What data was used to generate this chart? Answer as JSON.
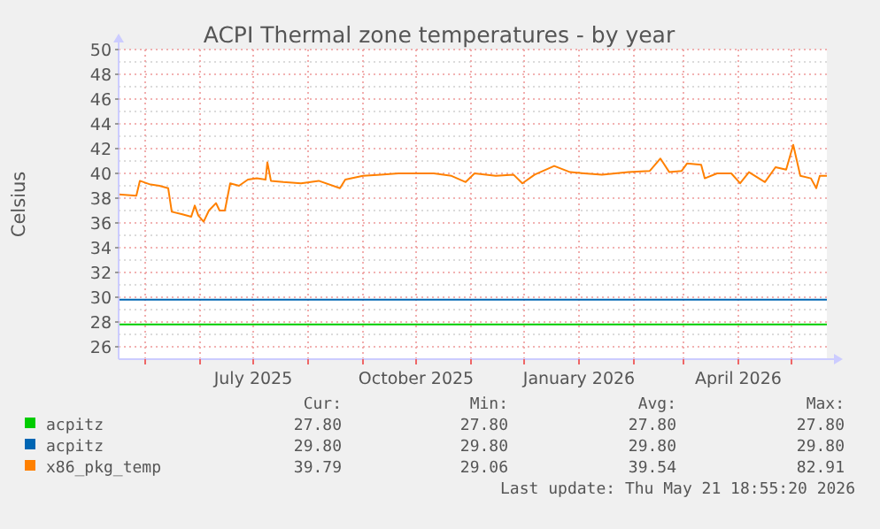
{
  "chart_data": {
    "type": "line",
    "title": "ACPI Thermal zone temperatures - by year",
    "ylabel": "Celsius",
    "xlim": [
      "2025-04-16",
      "2026-05-21"
    ],
    "xticks": [
      {
        "value": "2025-05-01",
        "label": null
      },
      {
        "value": "2025-06-01",
        "label": null
      },
      {
        "value": "2025-07-01",
        "label": "July 2025"
      },
      {
        "value": "2025-08-01",
        "label": null
      },
      {
        "value": "2025-09-01",
        "label": null
      },
      {
        "value": "2025-10-01",
        "label": "October 2025"
      },
      {
        "value": "2025-11-01",
        "label": null
      },
      {
        "value": "2025-12-01",
        "label": null
      },
      {
        "value": "2026-01-01",
        "label": "January 2026"
      },
      {
        "value": "2026-02-01",
        "label": null
      },
      {
        "value": "2026-03-01",
        "label": null
      },
      {
        "value": "2026-04-01",
        "label": "April 2026"
      },
      {
        "value": "2026-05-01",
        "label": null
      }
    ],
    "ylim": [
      25,
      50
    ],
    "yticks": [
      26,
      28,
      30,
      32,
      34,
      36,
      38,
      40,
      42,
      44,
      46,
      48,
      50
    ],
    "grid": true,
    "legend": "bottom",
    "series": [
      {
        "name": "acpitz",
        "color": "#00cc00",
        "x": [
          "2025-04-16",
          "2026-05-21"
        ],
        "values": [
          27.8,
          27.8
        ]
      },
      {
        "name": "acpitz",
        "color": "#0066b3",
        "x": [
          "2025-04-16",
          "2026-05-21"
        ],
        "values": [
          29.8,
          29.8
        ]
      },
      {
        "name": "x86_pkg_temp",
        "color": "#ff8000",
        "x": [
          "2025-04-16",
          "2025-04-26",
          "2025-04-28",
          "2025-05-04",
          "2025-05-09",
          "2025-05-14",
          "2025-05-16",
          "2025-05-22",
          "2025-05-27",
          "2025-05-29",
          "2025-05-31",
          "2025-06-03",
          "2025-06-06",
          "2025-06-10",
          "2025-06-12",
          "2025-06-15",
          "2025-06-18",
          "2025-06-23",
          "2025-06-28",
          "2025-07-03",
          "2025-07-08",
          "2025-07-09",
          "2025-07-11",
          "2025-07-18",
          "2025-07-28",
          "2025-08-07",
          "2025-08-19",
          "2025-08-22",
          "2025-09-01",
          "2025-09-11",
          "2025-09-21",
          "2025-10-01",
          "2025-10-11",
          "2025-10-21",
          "2025-10-29",
          "2025-11-03",
          "2025-11-15",
          "2025-11-25",
          "2025-11-30",
          "2025-12-07",
          "2025-12-18",
          "2025-12-27",
          "2026-01-04",
          "2026-01-14",
          "2026-01-29",
          "2026-02-10",
          "2026-02-16",
          "2026-02-21",
          "2026-02-28",
          "2026-03-03",
          "2026-03-11",
          "2026-03-13",
          "2026-03-20",
          "2026-03-28",
          "2026-04-02",
          "2026-04-07",
          "2026-04-16",
          "2026-04-22",
          "2026-04-28",
          "2026-05-02",
          "2026-05-06",
          "2026-05-12",
          "2026-05-15",
          "2026-05-17",
          "2026-05-21"
        ],
        "values": [
          38.3,
          38.2,
          39.4,
          39.1,
          39.0,
          38.8,
          36.9,
          36.7,
          36.5,
          37.4,
          36.6,
          36.1,
          37.0,
          37.6,
          37.0,
          37.0,
          39.2,
          39.0,
          39.5,
          39.6,
          39.5,
          40.9,
          39.4,
          39.3,
          39.2,
          39.4,
          38.8,
          39.5,
          39.8,
          39.9,
          40.0,
          40.0,
          40.0,
          39.8,
          39.3,
          40.0,
          39.8,
          39.9,
          39.2,
          39.9,
          40.6,
          40.1,
          40.0,
          39.9,
          40.1,
          40.2,
          41.2,
          40.1,
          40.2,
          40.8,
          40.7,
          39.6,
          40.0,
          40.0,
          39.2,
          40.1,
          39.3,
          40.5,
          40.3,
          42.3,
          39.8,
          39.6,
          38.8,
          39.8,
          39.8
        ]
      }
    ],
    "annotations": [
      "Cur:",
      "Min:",
      "Avg:",
      "Max:",
      "27.80",
      "27.80",
      "27.80",
      "27.80",
      "29.80",
      "29.80",
      "29.80",
      "29.80",
      "39.79",
      "29.06",
      "39.54",
      "82.91",
      "Last update: Thu May 21 18:55:20 2026"
    ]
  }
}
